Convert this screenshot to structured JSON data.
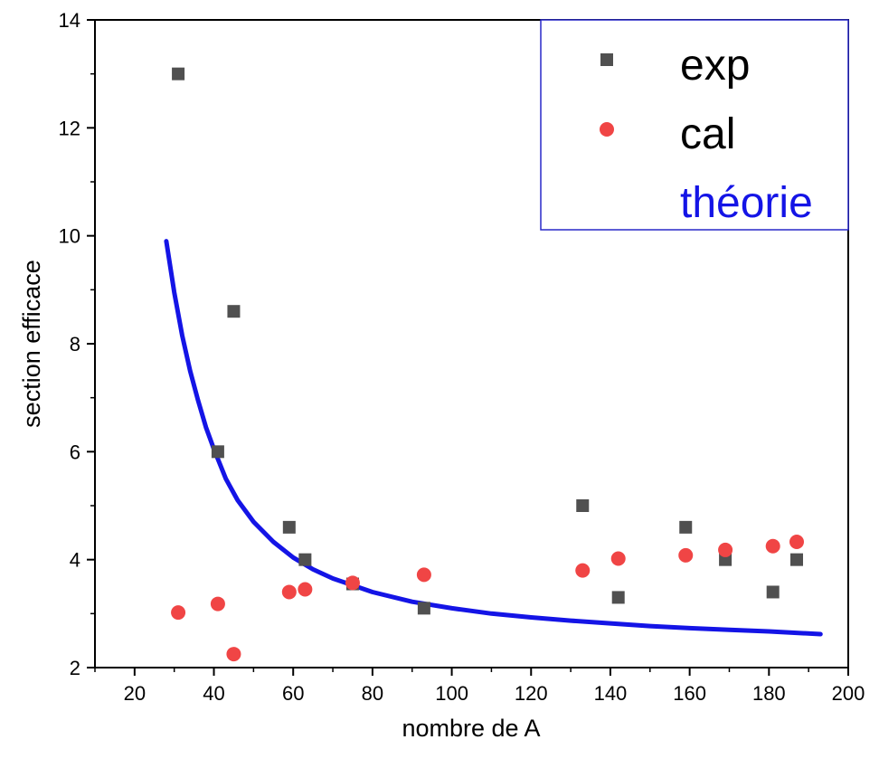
{
  "chart_data": {
    "type": "scatter",
    "title": "",
    "xlabel": "nombre de A",
    "ylabel": "section efficace",
    "xlim": [
      10,
      200
    ],
    "ylim": [
      2,
      14
    ],
    "x_ticks": [
      20,
      40,
      60,
      80,
      100,
      120,
      140,
      160,
      180,
      200
    ],
    "y_ticks": [
      2,
      4,
      6,
      8,
      10,
      12,
      14
    ],
    "grid": false,
    "legend_position": "top-right",
    "series": [
      {
        "name": "exp",
        "kind": "scatter",
        "marker": "square",
        "color": "#505050",
        "x": [
          31,
          41,
          45,
          59,
          63,
          75,
          93,
          133,
          142,
          159,
          169,
          181,
          187
        ],
        "y": [
          13.0,
          6.0,
          8.6,
          4.6,
          4.0,
          3.55,
          3.1,
          5.0,
          3.3,
          4.6,
          4.0,
          3.4,
          4.0
        ]
      },
      {
        "name": "cal",
        "kind": "scatter",
        "marker": "circle",
        "color": "#f04545",
        "x": [
          31,
          41,
          45,
          59,
          63,
          75,
          93,
          133,
          142,
          159,
          169,
          181,
          187
        ],
        "y": [
          3.02,
          3.18,
          2.25,
          3.4,
          3.45,
          3.57,
          3.72,
          3.8,
          4.02,
          4.08,
          4.18,
          4.25,
          4.33
        ]
      },
      {
        "name": "théorie",
        "kind": "line",
        "color": "#1414e6",
        "x": [
          28,
          30,
          32,
          34,
          36,
          38,
          40,
          43,
          46,
          50,
          55,
          60,
          65,
          70,
          80,
          90,
          100,
          110,
          120,
          130,
          140,
          150,
          160,
          170,
          180,
          193
        ],
        "y": [
          9.9,
          8.95,
          8.15,
          7.5,
          6.95,
          6.45,
          6.05,
          5.5,
          5.1,
          4.7,
          4.33,
          4.04,
          3.82,
          3.65,
          3.4,
          3.22,
          3.1,
          3.0,
          2.93,
          2.87,
          2.82,
          2.77,
          2.73,
          2.7,
          2.67,
          2.62
        ]
      }
    ]
  }
}
